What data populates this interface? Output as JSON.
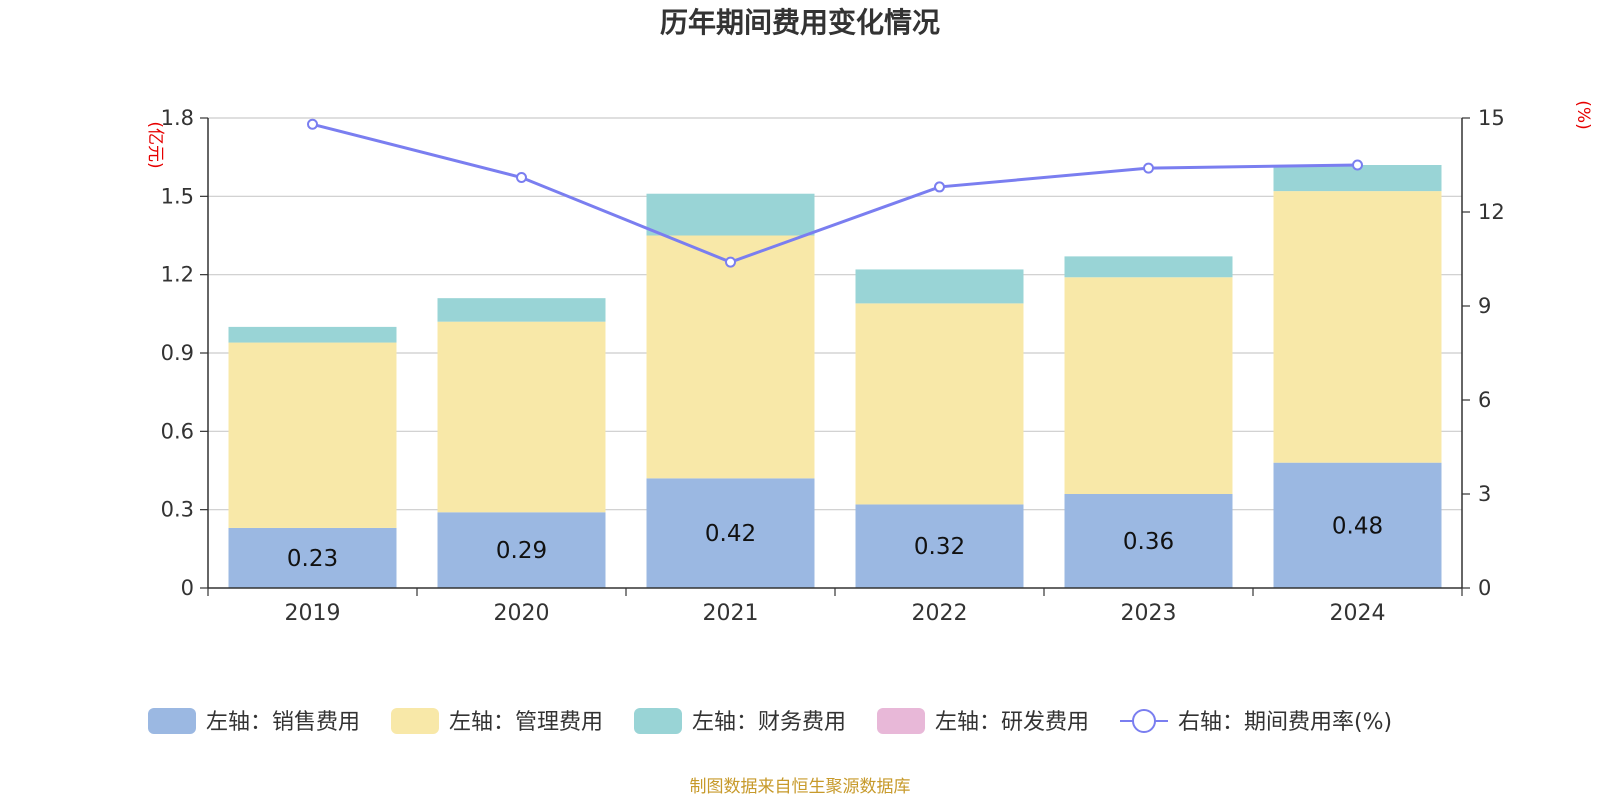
{
  "chart_data": {
    "type": "bar",
    "title": "历年期间费用变化情况",
    "categories": [
      "2019",
      "2020",
      "2021",
      "2022",
      "2023",
      "2024"
    ],
    "left_axis": {
      "unit": "(亿元)",
      "ticks": [
        "0",
        "0.3",
        "0.6",
        "0.9",
        "1.2",
        "1.5",
        "1.8"
      ],
      "range": [
        0,
        1.8
      ]
    },
    "right_axis": {
      "unit": "(%)",
      "ticks": [
        "0",
        "3",
        "6",
        "9",
        "12",
        "15"
      ],
      "range": [
        0,
        15
      ]
    },
    "series": [
      {
        "name": "左轴：销售费用",
        "color": "#9bb8e2",
        "values": [
          0.23,
          0.29,
          0.42,
          0.32,
          0.36,
          0.48
        ],
        "labels": [
          "0.23",
          "0.29",
          "0.42",
          "0.32",
          "0.36",
          "0.48"
        ]
      },
      {
        "name": "左轴：管理费用",
        "color": "#f8e8a8",
        "values": [
          0.71,
          0.73,
          0.93,
          0.77,
          0.83,
          1.04
        ]
      },
      {
        "name": "左轴：财务费用",
        "color": "#99d4d6",
        "values": [
          0.06,
          0.09,
          0.16,
          0.13,
          0.08,
          0.1
        ]
      },
      {
        "name": "左轴：研发费用",
        "color": "#e8b8d8",
        "values": [
          0,
          0,
          0,
          0,
          0,
          0
        ]
      }
    ],
    "line_series": {
      "name": "右轴：期间费用率(%)",
      "color": "#7a7ef0",
      "values": [
        14.8,
        13.1,
        10.4,
        12.8,
        13.4,
        13.5
      ]
    },
    "grid": true,
    "legend_position": "bottom"
  },
  "footer": {
    "source": "制图数据来自恒生聚源数据库"
  }
}
